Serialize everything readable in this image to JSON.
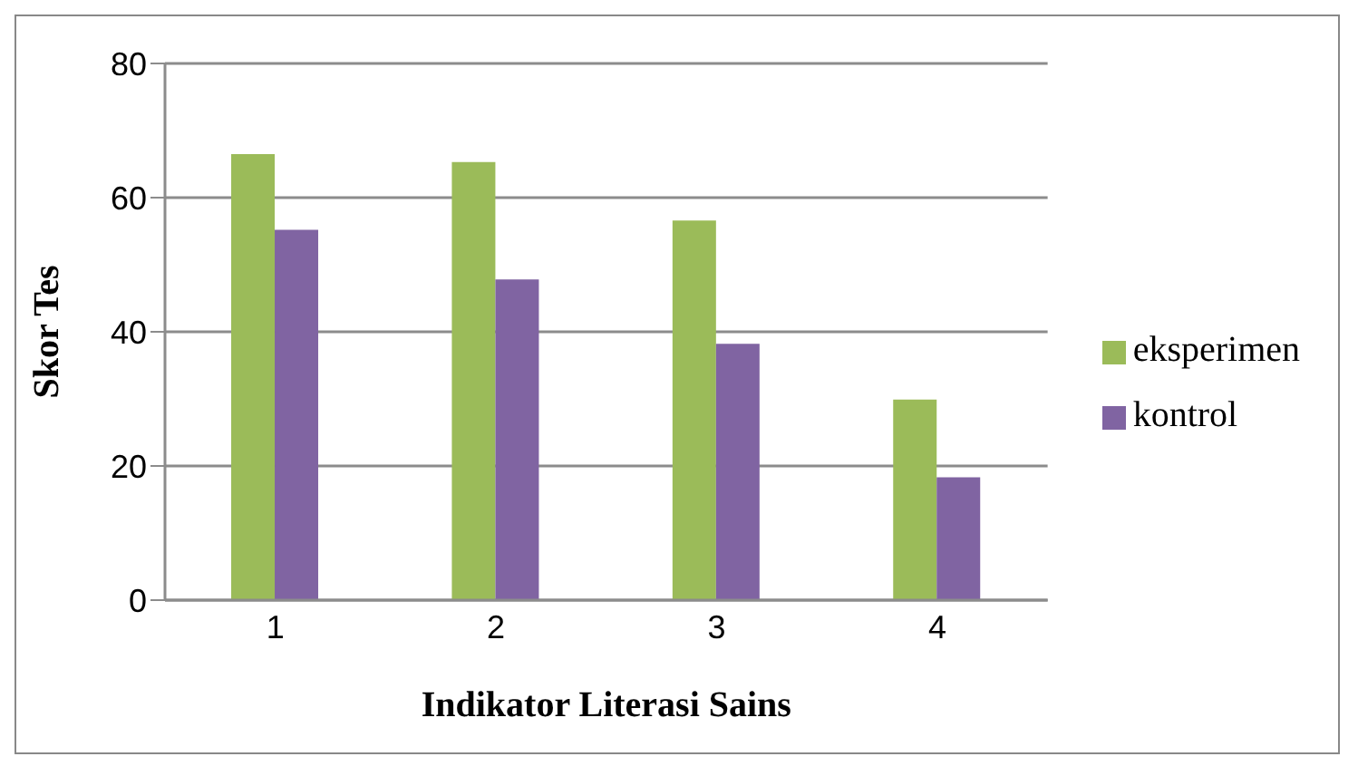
{
  "chart_data": {
    "type": "bar",
    "xlabel": "Indikator Literasi Sains",
    "ylabel": "Skor Tes",
    "categories": [
      "1",
      "2",
      "3",
      "4"
    ],
    "series": [
      {
        "name": "eksperimen",
        "color": "#9bbb59",
        "values": [
          66.5,
          65.3,
          56.6,
          29.9
        ]
      },
      {
        "name": "kontrol",
        "color": "#8064a2",
        "values": [
          55.2,
          47.8,
          38.2,
          18.3
        ]
      }
    ],
    "ylim": [
      0,
      80
    ],
    "yticks": [
      0,
      20,
      40,
      60,
      80
    ],
    "grid": "y",
    "legend": "right"
  }
}
